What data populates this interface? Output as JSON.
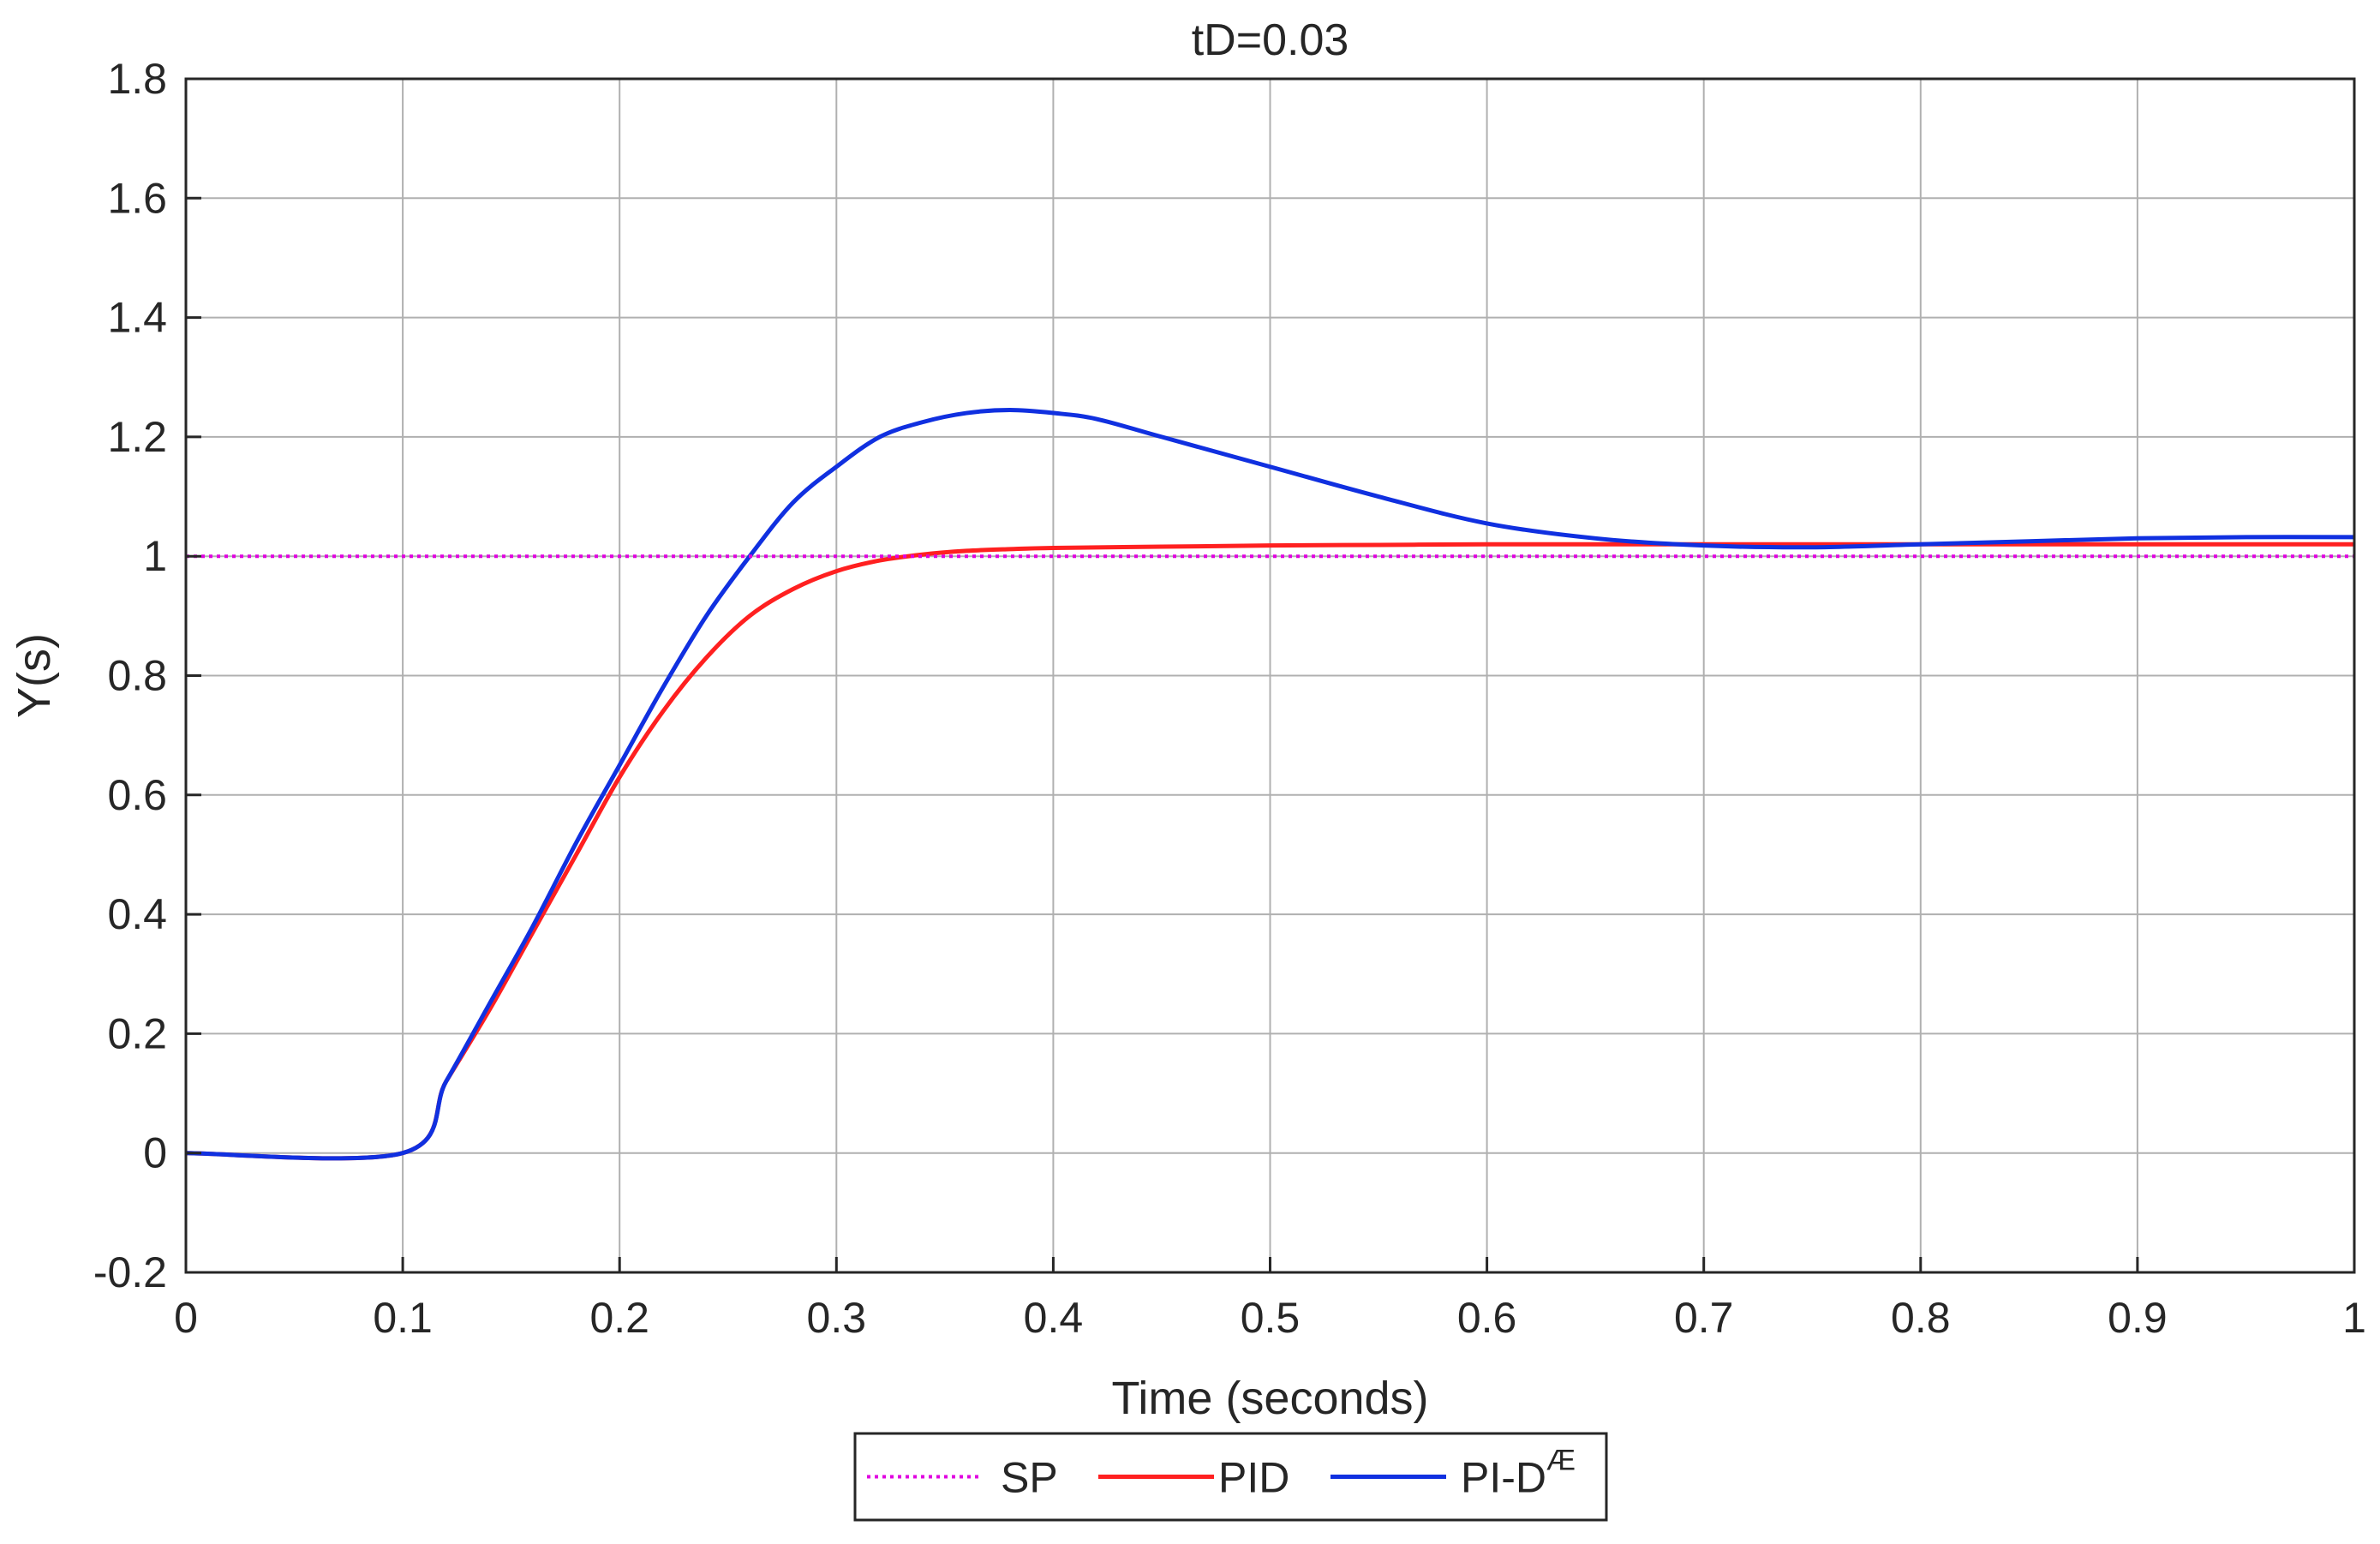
{
  "chart_data": {
    "type": "line",
    "title": "tD=0.03",
    "xlabel": "Time (seconds)",
    "ylabel": "Y(s)",
    "xlim": [
      0,
      1
    ],
    "ylim": [
      -0.2,
      1.8
    ],
    "xticks": [
      0,
      0.1,
      0.2,
      0.3,
      0.4,
      0.5,
      0.6,
      0.7,
      0.8,
      0.9,
      1
    ],
    "yticks": [
      -0.2,
      0,
      0.2,
      0.4,
      0.6,
      0.8,
      1,
      1.2,
      1.4,
      1.6,
      1.8
    ],
    "xtick_labels": [
      "0",
      "0.1",
      "0.2",
      "0.3",
      "0.4",
      "0.5",
      "0.6",
      "0.7",
      "0.8",
      "0.9",
      "1"
    ],
    "ytick_labels": [
      "-0.2",
      "0",
      "0.2",
      "0.4",
      "0.6",
      "0.8",
      "1",
      "1.2",
      "1.4",
      "1.6",
      "1.8"
    ],
    "grid": true,
    "legend": {
      "placement": "bottom-outside",
      "orientation": "horizontal"
    },
    "series": [
      {
        "name": "SP",
        "color": "#e000e0",
        "style": "dotted",
        "x": [
          0,
          1
        ],
        "y": [
          1,
          1
        ]
      },
      {
        "name": "PID",
        "color": "#ff2020",
        "style": "solid",
        "x": [
          0,
          0.1,
          0.12,
          0.14,
          0.16,
          0.18,
          0.2,
          0.22,
          0.24,
          0.26,
          0.28,
          0.3,
          0.32,
          0.34,
          0.36,
          0.38,
          0.4,
          0.45,
          0.5,
          0.55,
          0.6,
          0.65,
          0.7,
          0.75,
          0.8,
          0.85,
          0.9,
          0.95,
          1
        ],
        "y": [
          0,
          0,
          0.12,
          0.24,
          0.37,
          0.5,
          0.63,
          0.74,
          0.83,
          0.9,
          0.945,
          0.975,
          0.993,
          1.003,
          1.009,
          1.012,
          1.014,
          1.016,
          1.018,
          1.019,
          1.02,
          1.02,
          1.02,
          1.02,
          1.02,
          1.02,
          1.02,
          1.02,
          1.02
        ]
      },
      {
        "name": "PI-D",
        "name_sup": "Æ",
        "color": "#1030e0",
        "style": "solid",
        "x": [
          0,
          0.1,
          0.12,
          0.14,
          0.16,
          0.18,
          0.2,
          0.22,
          0.24,
          0.26,
          0.28,
          0.3,
          0.32,
          0.34,
          0.36,
          0.38,
          0.4,
          0.42,
          0.45,
          0.5,
          0.55,
          0.6,
          0.65,
          0.7,
          0.75,
          0.8,
          0.85,
          0.9,
          0.95,
          1
        ],
        "y": [
          0,
          0,
          0.12,
          0.25,
          0.38,
          0.52,
          0.65,
          0.78,
          0.9,
          1.0,
          1.09,
          1.15,
          1.2,
          1.225,
          1.24,
          1.245,
          1.24,
          1.23,
          1.2,
          1.15,
          1.1,
          1.055,
          1.03,
          1.018,
          1.015,
          1.02,
          1.025,
          1.03,
          1.032,
          1.032
        ]
      }
    ]
  }
}
